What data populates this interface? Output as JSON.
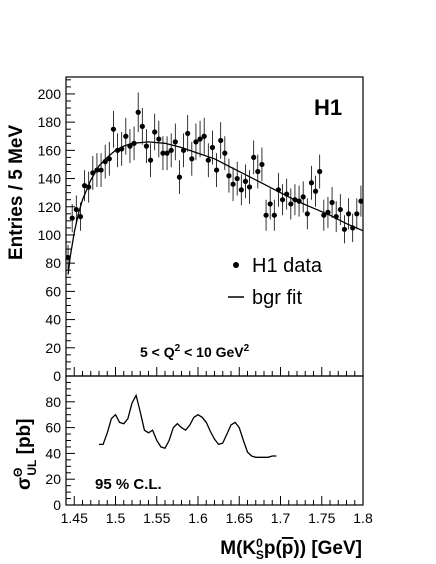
{
  "chart_data": [
    {
      "type": "scatter",
      "panel": "upper",
      "ylabel": "Entries / 5 MeV",
      "experiment_label": "H1",
      "kinematic_label": {
        "prefix": "5 < Q",
        "sup": "2",
        "mid": " <  10 GeV",
        "sup2": "2"
      },
      "xlim": [
        1.44,
        1.8
      ],
      "ylim": [
        0,
        212
      ],
      "yticks": [
        "0",
        "20",
        "40",
        "60",
        "80",
        "100",
        "120",
        "140",
        "160",
        "180",
        "200"
      ],
      "legend": [
        {
          "label": "H1 data",
          "marker": "dot"
        },
        {
          "label": "bgr fit",
          "marker": "line"
        }
      ],
      "series": [
        {
          "name": "H1 data",
          "x": [
            1.4425,
            1.4475,
            1.4525,
            1.4575,
            1.4625,
            1.4675,
            1.4725,
            1.4775,
            1.4825,
            1.4875,
            1.4925,
            1.4975,
            1.5025,
            1.5075,
            1.5125,
            1.5175,
            1.5225,
            1.5275,
            1.5325,
            1.5375,
            1.5425,
            1.5475,
            1.5525,
            1.5575,
            1.5625,
            1.5675,
            1.5725,
            1.5775,
            1.5825,
            1.5875,
            1.5925,
            1.5975,
            1.6025,
            1.6075,
            1.6125,
            1.6175,
            1.6225,
            1.6275,
            1.6325,
            1.6375,
            1.6425,
            1.6475,
            1.6525,
            1.6575,
            1.6625,
            1.6675,
            1.6725,
            1.6775,
            1.6825,
            1.6875,
            1.6925,
            1.6975,
            1.7025,
            1.7075,
            1.7125,
            1.7175,
            1.7225,
            1.7275,
            1.7325,
            1.7375,
            1.7425,
            1.7475,
            1.7525,
            1.7575,
            1.7625,
            1.7675,
            1.7725,
            1.7775,
            1.7825,
            1.7875,
            1.7925,
            1.7975
          ],
          "y": [
            84,
            112,
            118,
            113,
            135,
            134,
            144,
            146,
            146,
            152,
            154,
            175,
            160,
            161,
            170,
            163,
            165,
            187,
            177,
            163,
            153,
            173,
            168,
            158,
            158,
            160,
            166,
            141,
            160,
            172,
            154,
            166,
            168,
            170,
            153,
            162,
            146,
            167,
            158,
            142,
            136,
            140,
            132,
            138,
            134,
            155,
            145,
            150,
            114,
            122,
            114,
            132,
            125,
            129,
            122,
            125,
            124,
            127,
            115,
            137,
            131,
            145,
            114,
            116,
            123,
            113,
            118,
            104,
            115,
            105,
            115,
            124
          ],
          "errors": [
            9,
            10,
            10,
            10,
            11,
            11,
            12,
            12,
            12,
            12,
            12,
            13,
            12,
            12,
            13,
            12,
            12,
            14,
            13,
            12,
            12,
            13,
            13,
            12,
            12,
            12,
            13,
            12,
            12,
            13,
            12,
            13,
            13,
            13,
            12,
            12,
            12,
            13,
            12,
            12,
            12,
            12,
            11,
            12,
            12,
            12,
            12,
            12,
            11,
            11,
            11,
            12,
            11,
            11,
            11,
            11,
            11,
            11,
            11,
            12,
            11,
            12,
            11,
            11,
            11,
            11,
            11,
            10,
            11,
            10,
            11,
            11
          ]
        },
        {
          "name": "bgr fit",
          "x": [
            1.4425,
            1.445,
            1.45,
            1.455,
            1.46,
            1.47,
            1.48,
            1.49,
            1.5,
            1.51,
            1.52,
            1.53,
            1.54,
            1.55,
            1.56,
            1.58,
            1.6,
            1.62,
            1.64,
            1.66,
            1.68,
            1.7,
            1.72,
            1.74,
            1.76,
            1.78,
            1.8
          ],
          "y": [
            72,
            84,
            102,
            115,
            125,
            139,
            149,
            155,
            160,
            163,
            165,
            165.5,
            166,
            165.5,
            165,
            162,
            158,
            154,
            148,
            142,
            136,
            130,
            124,
            119,
            114,
            108,
            103
          ]
        }
      ]
    },
    {
      "type": "line",
      "panel": "lower",
      "ylabel_main": "σ",
      "ylabel_sup": "Θ",
      "ylabel_sub": "UL",
      "ylabel_rest": " [pb]",
      "annotation": "95 % C.L.",
      "xlabel": "M(K",
      "xlabel_sup": "0",
      "xlabel_sub": "S",
      "xlabel_rest": "p(",
      "xlabel_pbar": "p",
      "xlabel_end": ")) [GeV]",
      "xlim": [
        1.44,
        1.8
      ],
      "ylim": [
        0,
        100
      ],
      "xticks": [
        "1.45",
        "1.5",
        "1.55",
        "1.6",
        "1.65",
        "1.7",
        "1.75",
        "1.8"
      ],
      "yticks": [
        "0",
        "20",
        "40",
        "60",
        "80"
      ],
      "series": [
        {
          "name": "",
          "x": [
            1.48,
            1.485,
            1.49,
            1.495,
            1.5,
            1.505,
            1.51,
            1.515,
            1.52,
            1.525,
            1.53,
            1.535,
            1.54,
            1.545,
            1.55,
            1.555,
            1.56,
            1.565,
            1.57,
            1.575,
            1.58,
            1.585,
            1.59,
            1.595,
            1.6,
            1.605,
            1.61,
            1.615,
            1.62,
            1.625,
            1.63,
            1.635,
            1.64,
            1.645,
            1.65,
            1.655,
            1.66,
            1.665,
            1.67,
            1.675,
            1.68,
            1.685,
            1.69,
            1.695
          ],
          "y": [
            47,
            47,
            56,
            67,
            70,
            64,
            63,
            67,
            79,
            85,
            72,
            58,
            56,
            58,
            50,
            45,
            44,
            50,
            60,
            63,
            60,
            58,
            62,
            68,
            70,
            68,
            64,
            57,
            51,
            47,
            48,
            55,
            62,
            64,
            60,
            50,
            41,
            38,
            37,
            37,
            37,
            37,
            38,
            38
          ]
        }
      ]
    }
  ]
}
